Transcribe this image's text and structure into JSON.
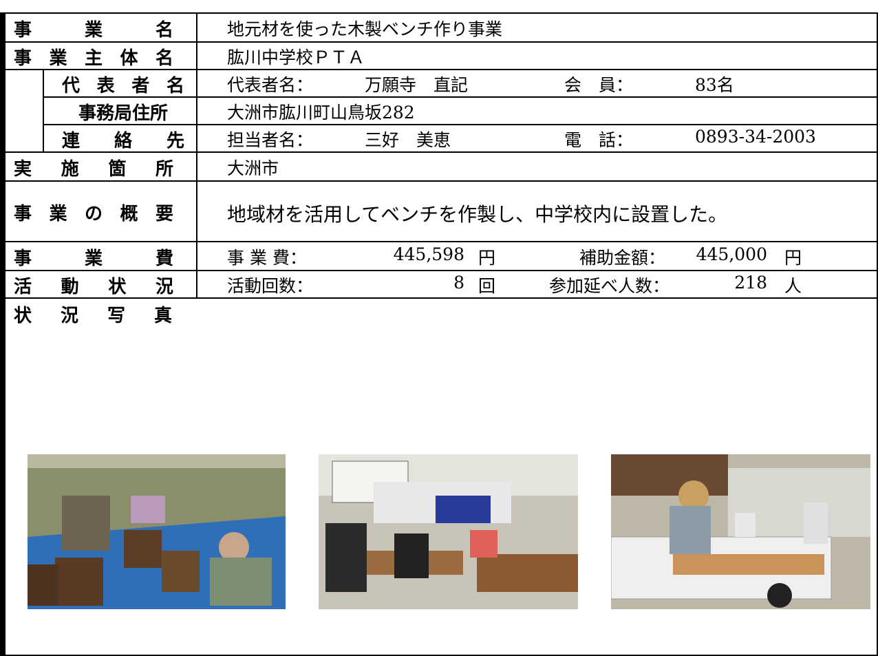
{
  "table": {
    "rows": [
      {
        "label": "事　業　名",
        "value": "地元材を使った木製ベンチ作り事業"
      },
      {
        "label": "事業主体名",
        "value": "肱川中学校ＰＴＡ"
      },
      {
        "label": "代表者名",
        "value": [
          "代表者名：",
          "万願寺　直記",
          "会　員：",
          "83名"
        ]
      },
      {
        "label": "事務局住所",
        "value": "大洲市肱川町山鳥坂282"
      },
      {
        "label": "連絡先",
        "value": [
          "担当者名：",
          "三好　美恵",
          "電　話：",
          "0893-34-2003"
        ]
      },
      {
        "label": "実施箇所",
        "value": "大洲市"
      },
      {
        "label": "事業の概要",
        "value": "地域材を活用してベンチを作製し、中学校内に設置した。"
      },
      {
        "label": "事業費",
        "value": [
          "事 業 費：",
          "445,598",
          "円",
          "補助金額：",
          "445,000",
          "円"
        ]
      },
      {
        "label": "活動状況",
        "value": [
          "活動回数：",
          "8",
          "回",
          "参加延べ人数：",
          "218",
          "人"
        ]
      },
      {
        "label": "状況写真"
      }
    ]
  }
}
